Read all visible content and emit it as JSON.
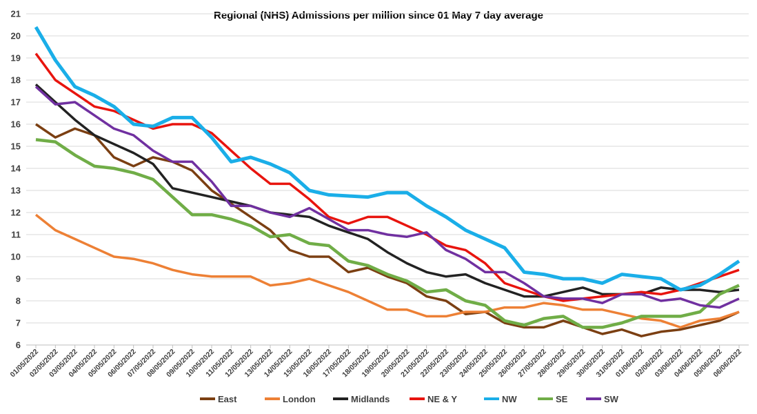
{
  "chart_data": {
    "type": "line",
    "title": "Regional (NHS) Admissions per million since 01 May 7 day average",
    "xlabel": "",
    "ylabel": "",
    "ylim": [
      6,
      21
    ],
    "yticks": [
      6,
      7,
      8,
      9,
      10,
      11,
      12,
      13,
      14,
      15,
      16,
      17,
      18,
      19,
      20,
      21
    ],
    "grid": true,
    "legend_position": "bottom",
    "x": [
      "01/05/2022",
      "02/05/2022",
      "03/05/2022",
      "04/05/2022",
      "05/05/2022",
      "06/05/2022",
      "07/05/2022",
      "08/05/2022",
      "09/05/2022",
      "10/05/2022",
      "11/05/2022",
      "12/05/2022",
      "13/05/2022",
      "14/05/2022",
      "15/05/2022",
      "16/05/2022",
      "17/05/2022",
      "18/05/2022",
      "19/05/2022",
      "20/05/2022",
      "21/05/2022",
      "22/05/2022",
      "23/05/2022",
      "24/05/2022",
      "25/05/2022",
      "26/05/2022",
      "27/05/2022",
      "28/05/2022",
      "29/05/2022",
      "30/05/2022",
      "31/05/2022",
      "01/06/2022",
      "02/06/2022",
      "03/06/2022",
      "04/06/2022",
      "05/06/2022",
      "06/06/2022"
    ],
    "series": [
      {
        "name": "East",
        "color": "#7B3F12",
        "values": [
          16.0,
          15.4,
          15.8,
          15.5,
          14.5,
          14.1,
          14.5,
          14.3,
          13.9,
          13.0,
          12.4,
          11.8,
          11.2,
          10.3,
          10.0,
          10.0,
          9.3,
          9.5,
          9.1,
          8.8,
          8.2,
          8.0,
          7.4,
          7.5,
          7.0,
          6.8,
          6.8,
          7.1,
          6.8,
          6.5,
          6.7,
          6.4,
          6.6,
          6.7,
          6.9,
          7.1,
          7.5
        ]
      },
      {
        "name": "London",
        "color": "#ED8035",
        "values": [
          11.9,
          11.2,
          10.8,
          10.4,
          10.0,
          9.9,
          9.7,
          9.4,
          9.2,
          9.1,
          9.1,
          9.1,
          8.7,
          8.8,
          9.0,
          8.7,
          8.4,
          8.0,
          7.6,
          7.6,
          7.3,
          7.3,
          7.5,
          7.5,
          7.7,
          7.7,
          7.9,
          7.8,
          7.6,
          7.6,
          7.4,
          7.2,
          7.1,
          6.8,
          7.1,
          7.2,
          7.5
        ]
      },
      {
        "name": "Midlands",
        "color": "#222222",
        "values": [
          17.8,
          17.0,
          16.2,
          15.5,
          15.1,
          14.7,
          14.2,
          13.1,
          12.9,
          12.7,
          12.5,
          12.3,
          12.0,
          11.9,
          11.8,
          11.4,
          11.1,
          10.8,
          10.2,
          9.7,
          9.3,
          9.1,
          9.2,
          8.8,
          8.5,
          8.2,
          8.2,
          8.4,
          8.6,
          8.3,
          8.3,
          8.3,
          8.6,
          8.5,
          8.5,
          8.4,
          8.5
        ]
      },
      {
        "name": "NE & Y",
        "color": "#E8140E",
        "values": [
          19.2,
          18.0,
          17.4,
          16.8,
          16.6,
          16.2,
          15.8,
          16.0,
          16.0,
          15.6,
          14.8,
          14.0,
          13.3,
          13.3,
          12.6,
          11.8,
          11.5,
          11.8,
          11.8,
          11.4,
          11.0,
          10.5,
          10.3,
          9.7,
          8.8,
          8.5,
          8.2,
          8.0,
          8.1,
          8.2,
          8.3,
          8.4,
          8.3,
          8.5,
          8.8,
          9.1,
          9.4
        ]
      },
      {
        "name": "NW",
        "color": "#1AAEE8",
        "values": [
          20.4,
          18.9,
          17.7,
          17.3,
          16.8,
          16.0,
          15.9,
          16.3,
          16.3,
          15.4,
          14.3,
          14.5,
          14.2,
          13.8,
          13.0,
          12.8,
          12.75,
          12.7,
          12.9,
          12.9,
          12.3,
          11.8,
          11.2,
          10.8,
          10.4,
          9.3,
          9.2,
          9.0,
          9.0,
          8.8,
          9.2,
          9.1,
          9.0,
          8.5,
          8.7,
          9.2,
          9.8
        ]
      },
      {
        "name": "SE",
        "color": "#70AD47",
        "values": [
          15.3,
          15.2,
          14.6,
          14.1,
          14.0,
          13.8,
          13.5,
          12.7,
          11.9,
          11.9,
          11.7,
          11.4,
          10.9,
          11.0,
          10.6,
          10.5,
          9.8,
          9.6,
          9.2,
          8.9,
          8.4,
          8.5,
          8.0,
          7.8,
          7.1,
          6.9,
          7.2,
          7.3,
          6.8,
          6.8,
          7.0,
          7.3,
          7.3,
          7.3,
          7.5,
          8.3,
          8.7
        ]
      },
      {
        "name": "SW",
        "color": "#7030A0",
        "values": [
          17.7,
          16.9,
          17.0,
          16.4,
          15.8,
          15.5,
          14.8,
          14.3,
          14.3,
          13.4,
          12.3,
          12.3,
          12.0,
          11.8,
          12.2,
          11.7,
          11.2,
          11.2,
          11.0,
          10.9,
          11.1,
          10.3,
          9.9,
          9.3,
          9.3,
          8.8,
          8.2,
          8.1,
          8.1,
          7.9,
          8.3,
          8.3,
          8.0,
          8.1,
          7.8,
          7.7,
          8.1
        ]
      }
    ]
  }
}
